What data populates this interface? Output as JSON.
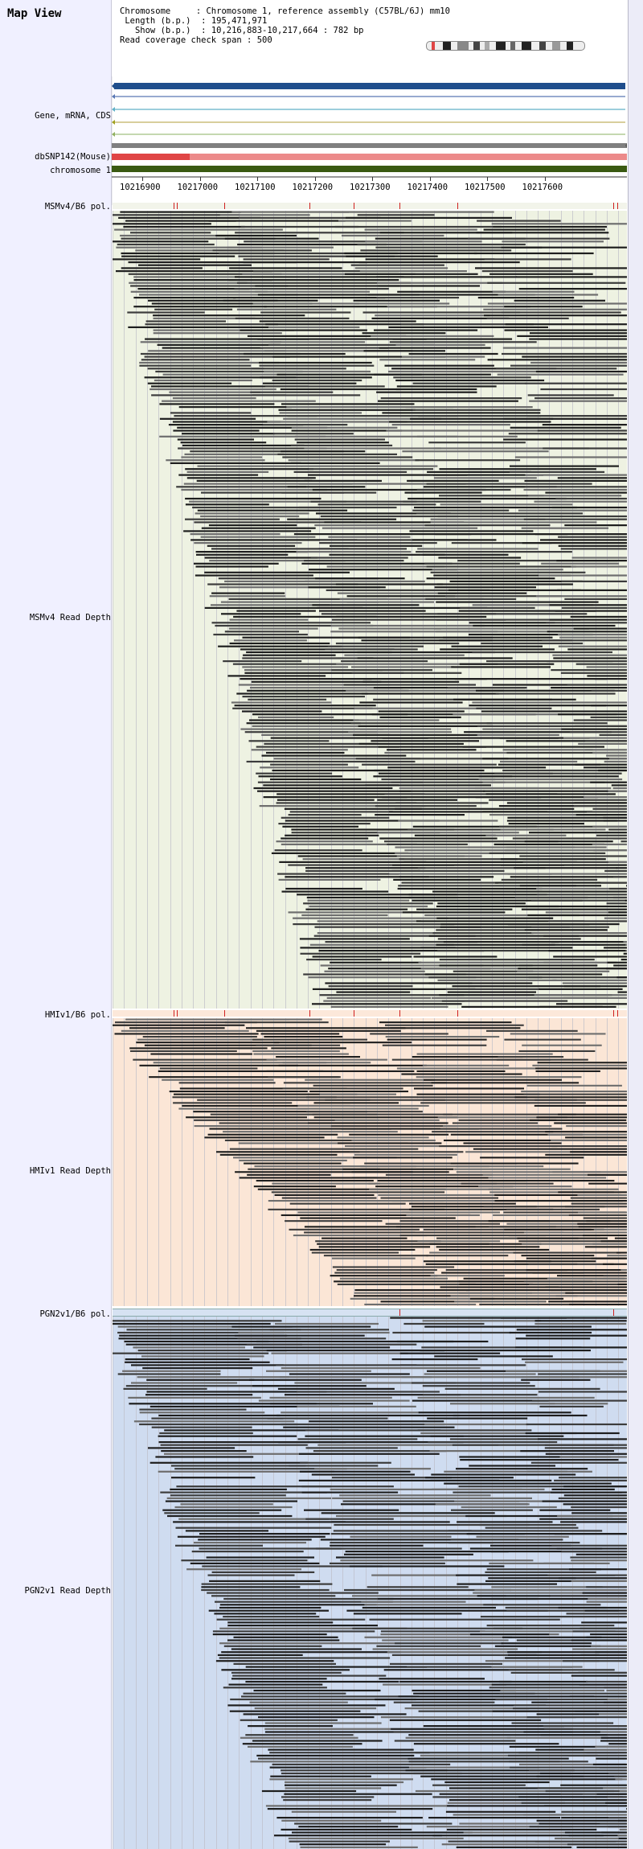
{
  "header": {
    "title": "Map View",
    "chromosome_label": "Chromosome",
    "chromosome_value": "Chromosome 1, reference assembly (C57BL/6J) mm10",
    "length_label": "Length (b.p.)",
    "length_value": "195,471,971",
    "show_label": "Show (b.p.)",
    "show_value": "10,216,883-10,217,664 : 782 bp",
    "span_label": "Read coverage check span",
    "span_value": "500"
  },
  "tracks": {
    "gene_label": "Gene, mRNA, CDS",
    "dbsnp_label": "dbSNP142(Mouse)",
    "chromosome_label": "chromosome 1",
    "msm_pol_label": "MSMv4/B6 pol.",
    "msm_depth_label": "MSMv4 Read Depth",
    "hmi_pol_label": "HMIv1/B6 pol.",
    "hmi_depth_label": "HMIv1 Read Depth",
    "pgn_pol_label": "PGN2v1/B6 pol.",
    "pgn_depth_label": "PGN2v1 Read Depth"
  },
  "ruler": {
    "ticks": [
      "10216900",
      "10217000",
      "10217100",
      "10217200",
      "10217300",
      "10217400",
      "10217500",
      "10217600"
    ]
  },
  "colors": {
    "msm_bg": "#eef2e2",
    "hmi_bg": "#fbe6d6",
    "pgn_bg": "#cfdcf0",
    "gene_blue": "#1f4e8c",
    "snp_red": "#e04545",
    "snp_pink": "#ec8a8a",
    "chrom_green": "#3a5a12",
    "pol_mark": "#d02020"
  }
}
